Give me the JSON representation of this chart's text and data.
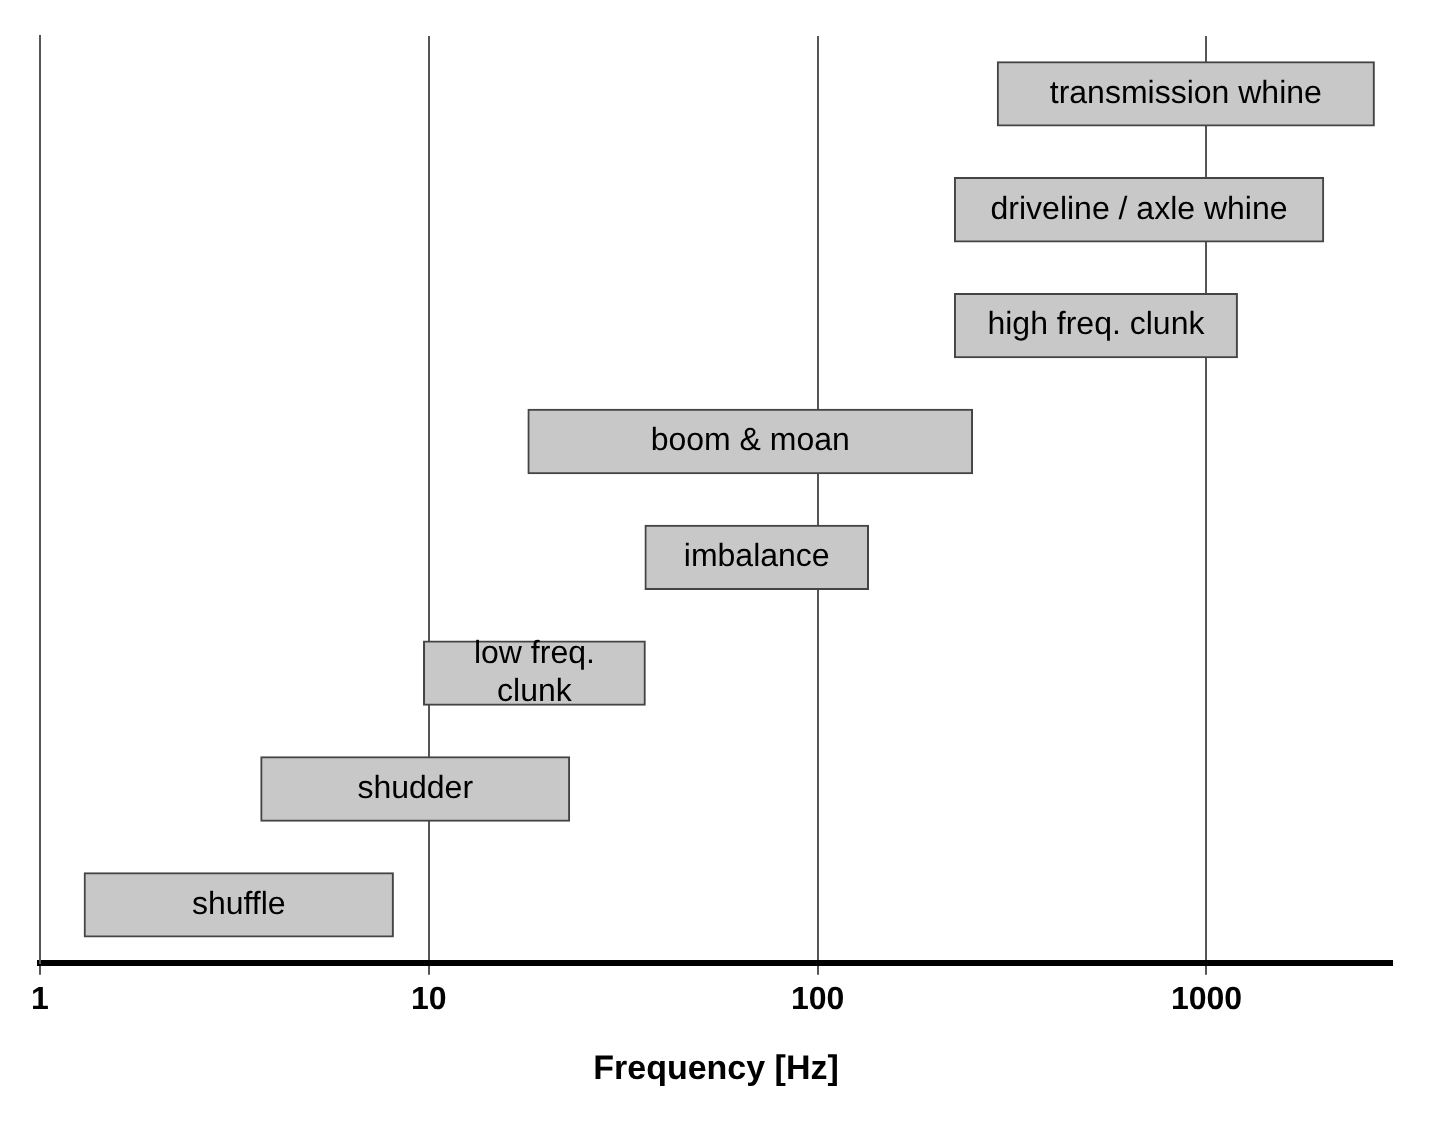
{
  "chart_data": {
    "type": "bar",
    "orientation": "horizontal",
    "xlabel": "Frequency [Hz]",
    "categories": [
      "transmission whine",
      "driveline / axle whine",
      "high freq. clunk",
      "boom & moan",
      "imbalance",
      "low freq. clunk",
      "shudder",
      "shuffle"
    ],
    "base": [
      290,
      225,
      225,
      18,
      36,
      9.7,
      3.7,
      1.3
    ],
    "values": [
      2410,
      1775,
      975,
      232,
      99,
      26.3,
      19.3,
      6.8
    ],
    "color": "#c8c8c8",
    "log": "x",
    "xlim": [
      1,
      3000
    ],
    "xticks": [
      1,
      10,
      100,
      1000
    ],
    "grid": "x",
    "tick_labels": "x",
    "legend": false
  }
}
